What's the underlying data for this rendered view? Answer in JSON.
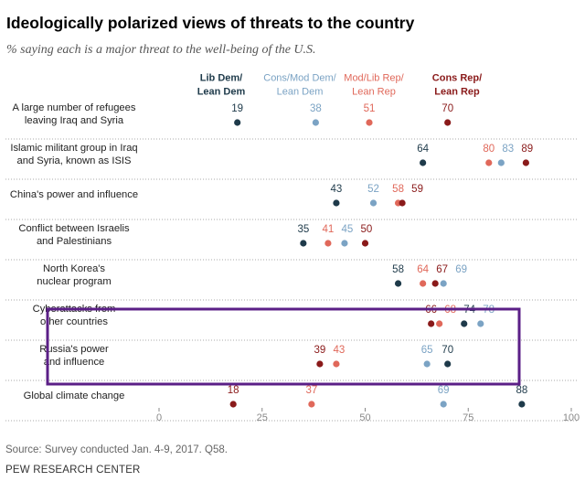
{
  "title": "Ideologically polarized views of threats to the country",
  "subtitle": "% saying each is a major threat to the well-being of the U.S.",
  "source": "Source: Survey conducted Jan. 4-9, 2017. Q58.",
  "organization": "PEW RESEARCH CENTER",
  "colors": {
    "lib_dem": "#1e3a4a",
    "cons_mod_dem": "#7ba3c4",
    "mod_lib_rep": "#e0685a",
    "cons_rep": "#8a1a1a",
    "highlight_box": "#5b1f87",
    "axis_text": "#888888",
    "row_rule": "#aaaaaa"
  },
  "chart_data": {
    "type": "dot",
    "xlim": [
      0,
      100
    ],
    "xticks": [
      "0",
      "25",
      "50",
      "75",
      "100"
    ],
    "series": [
      {
        "name": "Lib Dem/\nLean Dem",
        "color": "#1e3a4a"
      },
      {
        "name": "Cons/Mod Dem/\nLean Dem",
        "color": "#7ba3c4"
      },
      {
        "name": "Mod/Lib Rep/\nLean Rep",
        "color": "#e0685a"
      },
      {
        "name": "Cons Rep/\nLean Rep",
        "color": "#8a1a1a"
      }
    ],
    "categories": [
      "A large number of refugees\nleaving Iraq and Syria",
      "Islamic militant group in Iraq\nand Syria, known as ISIS",
      "China's power and influence",
      "Conflict between Israelis\nand Palestinians",
      "North Korea's\nnuclear program",
      "Cyberattacks from\nother countries",
      "Russia's power\nand influence",
      "Global climate change"
    ],
    "values": [
      [
        19,
        38,
        51,
        70
      ],
      [
        64,
        83,
        80,
        89
      ],
      [
        43,
        52,
        58,
        59
      ],
      [
        35,
        45,
        41,
        50
      ],
      [
        58,
        69,
        64,
        67
      ],
      [
        74,
        78,
        68,
        66
      ],
      [
        70,
        65,
        43,
        39
      ],
      [
        88,
        69,
        37,
        18
      ]
    ],
    "highlighted_categories": [
      "Cyberattacks from\nother countries",
      "Russia's power\nand influence"
    ]
  }
}
